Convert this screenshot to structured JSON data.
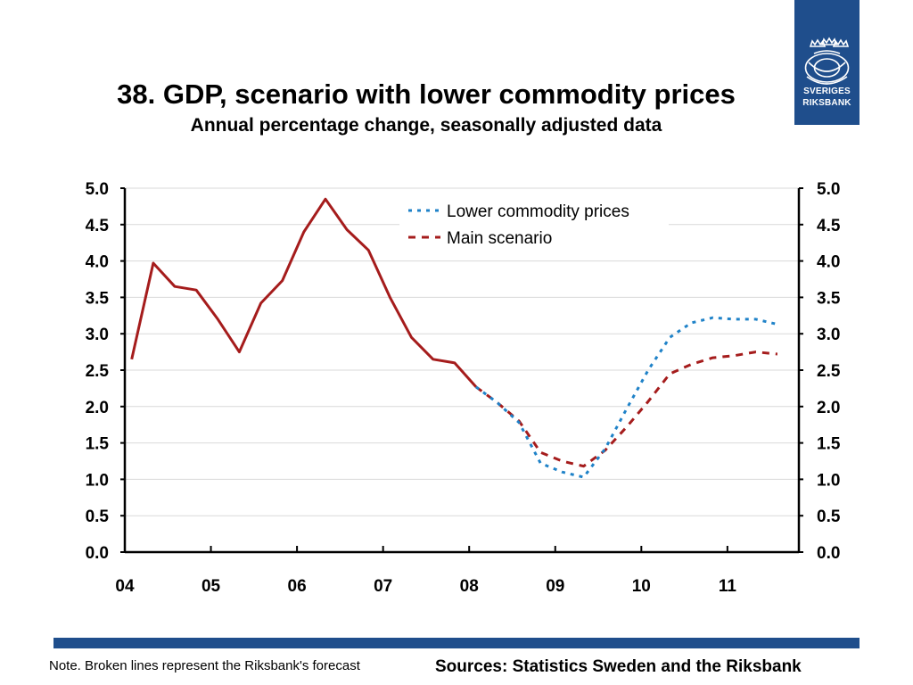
{
  "header": {
    "title": "38. GDP, scenario with lower commodity prices",
    "subtitle": "Annual percentage change, seasonally adjusted data"
  },
  "logo": {
    "line1": "SVERIGES",
    "line2": "RIKSBANK",
    "brand_color": "#1f4e8c"
  },
  "footer": {
    "note": "Note. Broken lines represent the Riksbank's forecast",
    "sources": "Sources: Statistics Sweden and the Riksbank"
  },
  "chart_data": {
    "type": "line",
    "title": "38. GDP, scenario with lower commodity prices",
    "subtitle": "Annual percentage change, seasonally adjusted data",
    "xlabel": "",
    "ylabel": "",
    "x_tick_labels": [
      "04",
      "05",
      "06",
      "07",
      "08",
      "09",
      "10",
      "11"
    ],
    "y_ticks": [
      "5.0",
      "4.5",
      "4.0",
      "3.5",
      "3.0",
      "2.5",
      "2.0",
      "1.5",
      "1.0",
      "0.5",
      "0.0"
    ],
    "ylim": [
      0,
      5
    ],
    "xlim": [
      2004.0,
      2011.83
    ],
    "grid": true,
    "legend_position": "top-right",
    "colors": {
      "outcome": "#a51c1c",
      "main_scenario": "#a51c1c",
      "lower_commodity": "#1f82c8"
    },
    "series": [
      {
        "style": "solid",
        "x": [
          2004.08,
          2004.33,
          2004.58,
          2004.83,
          2005.08,
          2005.33,
          2005.58,
          2005.83,
          2006.08,
          2006.33,
          2006.58,
          2006.83,
          2007.08,
          2007.33,
          2007.58,
          2007.83,
          2008.08
        ],
        "values": [
          2.65,
          3.97,
          3.65,
          3.6,
          3.2,
          2.75,
          3.42,
          3.73,
          4.4,
          4.85,
          4.43,
          4.15,
          3.5,
          2.95,
          2.65,
          2.6,
          2.27
        ]
      },
      {
        "name": "Lower commodity prices",
        "style": "dotted",
        "x": [
          2008.08,
          2008.33,
          2008.58,
          2008.83,
          2009.08,
          2009.33,
          2009.58,
          2009.83,
          2010.08,
          2010.33,
          2010.58,
          2010.83,
          2011.08,
          2011.33,
          2011.58
        ],
        "values": [
          2.27,
          2.05,
          1.78,
          1.22,
          1.1,
          1.03,
          1.42,
          1.97,
          2.5,
          2.95,
          3.15,
          3.22,
          3.2,
          3.2,
          3.13
        ]
      },
      {
        "name": "Main scenario",
        "style": "dashed",
        "x": [
          2008.08,
          2008.33,
          2008.58,
          2008.83,
          2009.08,
          2009.33,
          2009.58,
          2009.83,
          2010.08,
          2010.33,
          2010.58,
          2010.83,
          2011.08,
          2011.33,
          2011.58
        ],
        "values": [
          2.27,
          2.05,
          1.8,
          1.37,
          1.25,
          1.18,
          1.4,
          1.72,
          2.07,
          2.45,
          2.58,
          2.67,
          2.7,
          2.75,
          2.72
        ]
      }
    ]
  }
}
